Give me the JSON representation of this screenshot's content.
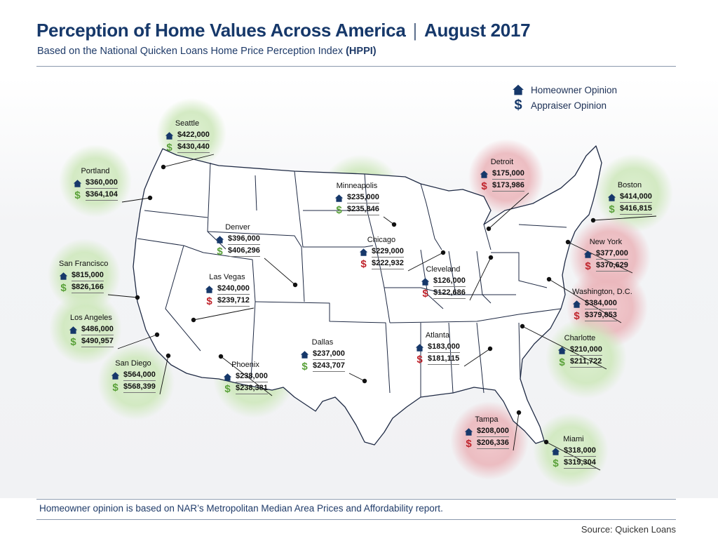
{
  "header": {
    "title": "Perception of Home Values Across America",
    "title_suffix": "August 2017",
    "subtitle": "Based on the National Quicken Loans Home Price Perception Index",
    "subtitle_bold": "(HPPI)"
  },
  "legend": {
    "homeowner": "Homeowner Opinion",
    "appraiser": "Appraiser Opinion"
  },
  "colors": {
    "navy": "#16386a",
    "green_halo": "#a8d48a",
    "red_halo": "#e29aa2",
    "green_dollar": "#5aa13a",
    "red_dollar": "#c0252d",
    "map_fill": "#ffffff",
    "map_line": "#1f2a44"
  },
  "cities": [
    {
      "id": "seattle",
      "name": "Seattle",
      "homeowner": "$422,000",
      "appraiser": "$430,440",
      "tone": "green"
    },
    {
      "id": "portland",
      "name": "Portland",
      "homeowner": "$360,000",
      "appraiser": "$364,104",
      "tone": "green"
    },
    {
      "id": "san-francisco",
      "name": "San Francisco",
      "homeowner": "$815,000",
      "appraiser": "$826,166",
      "tone": "green"
    },
    {
      "id": "los-angeles",
      "name": "Los Angeles",
      "homeowner": "$486,000",
      "appraiser": "$490,957",
      "tone": "green"
    },
    {
      "id": "san-diego",
      "name": "San Diego",
      "homeowner": "$564,000",
      "appraiser": "$568,399",
      "tone": "green"
    },
    {
      "id": "las-vegas",
      "name": "Las Vegas",
      "homeowner": "$240,000",
      "appraiser": "$239,712",
      "tone": "red"
    },
    {
      "id": "denver",
      "name": "Denver",
      "homeowner": "$396,000",
      "appraiser": "$406,296",
      "tone": "green"
    },
    {
      "id": "phoenix",
      "name": "Phoenix",
      "homeowner": "$238,000",
      "appraiser": "$238,381",
      "tone": "green"
    },
    {
      "id": "dallas",
      "name": "Dallas",
      "homeowner": "$237,000",
      "appraiser": "$243,707",
      "tone": "green"
    },
    {
      "id": "minneapolis",
      "name": "Minneapolis",
      "homeowner": "$235,000",
      "appraiser": "$235,846",
      "tone": "green"
    },
    {
      "id": "chicago",
      "name": "Chicago",
      "homeowner": "$229,000",
      "appraiser": "$222,932",
      "tone": "red"
    },
    {
      "id": "cleveland",
      "name": "Cleveland",
      "homeowner": "$126,000",
      "appraiser": "$122,686",
      "tone": "red"
    },
    {
      "id": "detroit",
      "name": "Detroit",
      "homeowner": "$175,000",
      "appraiser": "$173,986",
      "tone": "red"
    },
    {
      "id": "atlanta",
      "name": "Atlanta",
      "homeowner": "$183,000",
      "appraiser": "$181,115",
      "tone": "red"
    },
    {
      "id": "boston",
      "name": "Boston",
      "homeowner": "$414,000",
      "appraiser": "$416,815",
      "tone": "green"
    },
    {
      "id": "new-york",
      "name": "New York",
      "homeowner": "$377,000",
      "appraiser": "$370,629",
      "tone": "red"
    },
    {
      "id": "washington-dc",
      "name": "Washington, D.C.",
      "homeowner": "$384,000",
      "appraiser": "$379,853",
      "tone": "red"
    },
    {
      "id": "charlotte",
      "name": "Charlotte",
      "homeowner": "$210,000",
      "appraiser": "$211,722",
      "tone": "green"
    },
    {
      "id": "tampa",
      "name": "Tampa",
      "homeowner": "$208,000",
      "appraiser": "$206,336",
      "tone": "red"
    },
    {
      "id": "miami",
      "name": "Miami",
      "homeowner": "$318,000",
      "appraiser": "$319,304",
      "tone": "green"
    }
  ],
  "footnote": "Homeowner opinion is based on NAR’s Metropolitan Median Area Prices and Affordability report.",
  "source": "Source: Quicken Loans"
}
